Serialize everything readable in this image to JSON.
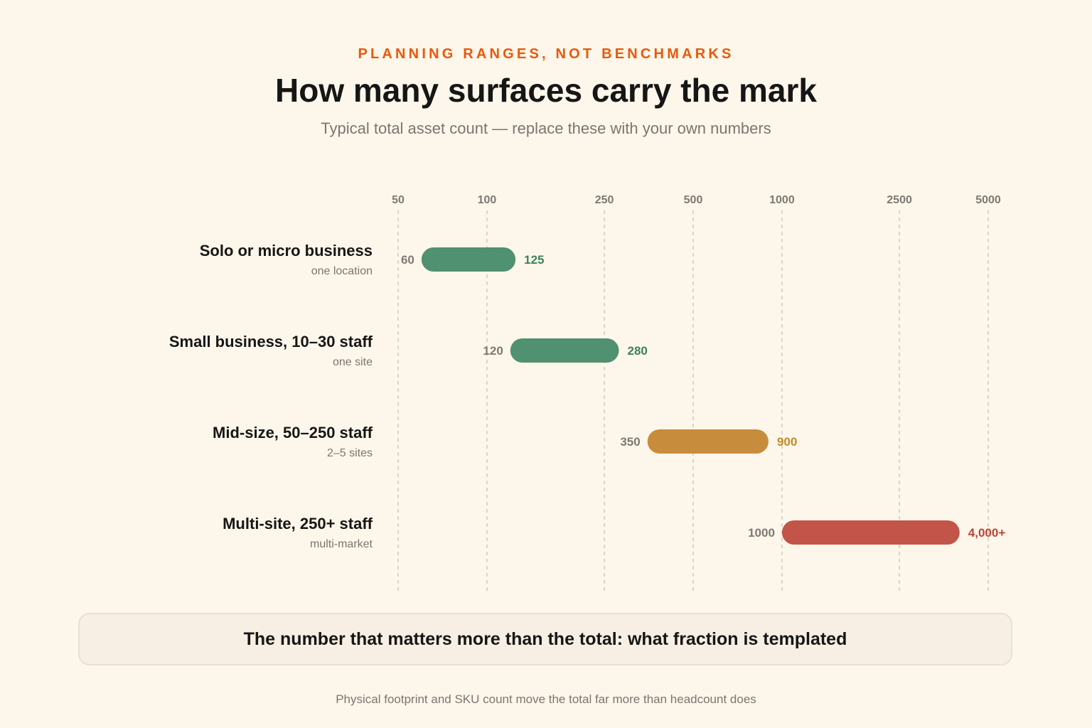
{
  "header": {
    "eyebrow": "PLANNING RANGES, NOT BENCHMARKS",
    "title": "How many surfaces carry the mark",
    "subtitle": "Typical total asset count — replace these with your own numbers"
  },
  "chart_data": {
    "type": "range-bar",
    "x_scale": "log",
    "x_ticks": [
      50,
      100,
      250,
      500,
      1000,
      2500,
      5000
    ],
    "x_tick_labels": [
      "50",
      "100",
      "250",
      "500",
      "1000",
      "2500",
      "5000"
    ],
    "grid": "vertical dashed",
    "rows": [
      {
        "label": "Solo or micro business",
        "sublabel": "one location",
        "low": 60,
        "high": 125,
        "low_label": "60",
        "high_label": "125",
        "color": "#4f9170"
      },
      {
        "label": "Small business, 10–30 staff",
        "sublabel": "one site",
        "low": 120,
        "high": 280,
        "low_label": "120",
        "high_label": "280",
        "color": "#4f9170"
      },
      {
        "label": "Mid-size, 50–250 staff",
        "sublabel": "2–5 sites",
        "low": 350,
        "high": 900,
        "low_label": "350",
        "high_label": "900",
        "color": "#c78d3d"
      },
      {
        "label": "Multi-site, 250+ staff",
        "sublabel": "multi-market",
        "low": 1000,
        "high": 4000,
        "low_label": "1000",
        "high_label": "4,000+",
        "color": "#c3544a"
      }
    ],
    "label_colors": {
      "#4f9170": "#3f8058",
      "#c78d3d": "#bf8a2e",
      "#c3544a": "#b9443a"
    }
  },
  "callout": {
    "text": "The number that matters more than the total: what fraction is templated"
  },
  "footnote": {
    "text": "Physical footprint and SKU count move the total far more than headcount does"
  }
}
